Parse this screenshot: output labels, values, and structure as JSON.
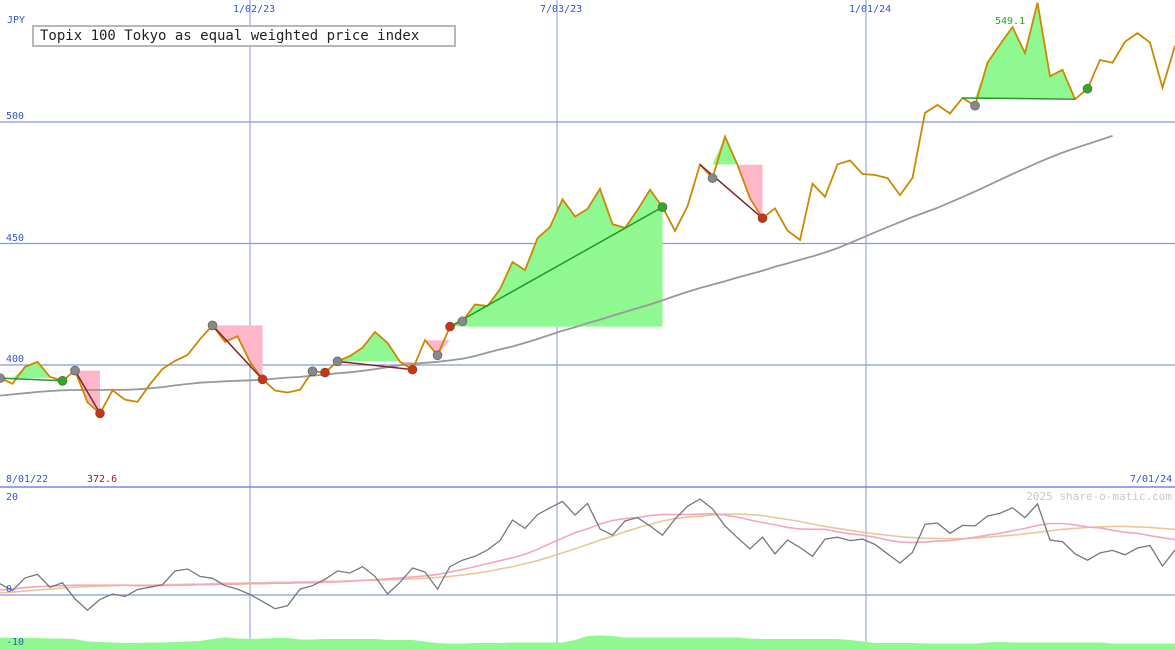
{
  "chart_data": [
    {
      "type": "line",
      "title": "Topix 100 Tokyo as equal weighted price index",
      "ylabel": "JPY",
      "ylim": [
        372.5,
        550
      ],
      "yticks": [
        400,
        450,
        500
      ],
      "x_tick_labels": [
        "1/02/23",
        "7/03/23",
        "1/01/24"
      ],
      "start_date_label": "8/01/22",
      "end_date_label": "7/01/24",
      "min_label": "372.6",
      "max_label": "549.1",
      "grid": true,
      "series": [
        {
          "role": "price",
          "color": "#cc8800",
          "values": [
            394.6,
            392.3,
            399.2,
            401.3,
            395.1,
            393.5,
            397.7,
            384.6,
            380.1,
            389.6,
            385.7,
            384.8,
            392.1,
            398.4,
            401.7,
            404.1,
            410.6,
            416.3,
            409.5,
            411.8,
            401.3,
            394.1,
            389.5,
            388.7,
            389.8,
            397.4,
            396.9,
            401.5,
            403.7,
            407.1,
            413.6,
            409.1,
            401.3,
            398.1,
            410.2,
            404.0,
            415.8,
            418.0,
            424.9,
            424.3,
            431.2,
            442.4,
            439.0,
            452.2,
            456.8,
            468.2,
            461.1,
            464.2,
            472.5,
            458.0,
            456.4,
            463.8,
            472.1,
            465.0,
            455.2,
            465.3,
            482.5,
            476.9,
            494.0,
            482.4,
            468.6,
            460.4,
            464.5,
            455.3,
            451.5,
            474.6,
            469.2,
            482.6,
            484.2,
            478.6,
            478.2,
            476.9,
            469.9,
            477.0,
            503.8,
            507.0,
            503.5,
            509.9,
            506.7,
            524.4,
            531.9,
            539.1,
            528.3,
            549.1,
            518.8,
            521.5,
            509.4,
            513.7,
            525.5,
            524.4,
            533.0,
            536.6,
            532.7,
            514.1,
            531.4
          ]
        },
        {
          "role": "moving-average",
          "color": "#999999",
          "values": [
            387.4,
            387.9,
            388.4,
            388.9,
            389.3,
            389.6,
            389.7,
            389.7,
            389.7,
            389.8,
            389.8,
            390.0,
            390.4,
            390.9,
            391.6,
            392.2,
            392.7,
            393.0,
            393.3,
            393.5,
            393.7,
            393.9,
            394.4,
            394.8,
            395.1,
            395.6,
            396.1,
            396.6,
            397.0,
            397.6,
            398.3,
            399.1,
            399.9,
            400.5,
            400.9,
            401.3,
            401.9,
            402.6,
            403.7,
            405.1,
            406.4,
            407.6,
            409.1,
            410.7,
            412.4,
            414.1,
            415.5,
            417.2,
            418.7,
            420.3,
            421.8,
            423.4,
            424.9,
            426.6,
            428.4,
            430.1,
            431.7,
            433.1,
            434.5,
            436.0,
            437.4,
            438.8,
            440.4,
            441.8,
            443.3,
            444.7,
            446.3,
            448.1,
            450.2,
            452.4,
            454.6,
            456.7,
            458.8,
            460.9,
            462.8,
            464.7,
            466.9,
            469.1,
            471.4,
            473.8,
            476.2,
            478.6,
            480.9,
            483.2,
            485.4,
            487.4,
            489.2,
            490.9,
            492.6,
            494.3
          ]
        }
      ],
      "highlight_zones": [
        {
          "type": "up",
          "from": 0,
          "to": 5
        },
        {
          "type": "down",
          "from": 6,
          "to": 8
        },
        {
          "type": "down",
          "from": 17,
          "to": 21
        },
        {
          "type": "up",
          "from": 27,
          "to": 32
        },
        {
          "type": "down",
          "from": 32,
          "to": 33
        },
        {
          "type": "down",
          "from": 34,
          "to": 36
        },
        {
          "type": "up",
          "from": 36,
          "to": 53
        },
        {
          "type": "up",
          "from": 56,
          "to": 59
        },
        {
          "type": "down",
          "from": 59,
          "to": 61
        },
        {
          "type": "up",
          "from": 77,
          "to": 86
        }
      ],
      "signal_lines": [
        {
          "type": "up",
          "from": 0,
          "to": 5
        },
        {
          "type": "down",
          "from": 6,
          "to": 8
        },
        {
          "type": "down",
          "from": 17,
          "to": 21
        },
        {
          "type": "down",
          "from": 27,
          "to": 33
        },
        {
          "type": "up",
          "from": 36,
          "to": 53
        },
        {
          "type": "down",
          "from": 56,
          "to": 61
        },
        {
          "type": "up",
          "from": 77,
          "to": 86
        }
      ],
      "markers": [
        {
          "i": 0,
          "color": "grey"
        },
        {
          "i": 5,
          "color": "green"
        },
        {
          "i": 6,
          "color": "grey"
        },
        {
          "i": 8,
          "color": "red"
        },
        {
          "i": 17,
          "color": "grey"
        },
        {
          "i": 21,
          "color": "red"
        },
        {
          "i": 25,
          "color": "grey"
        },
        {
          "i": 26,
          "color": "red"
        },
        {
          "i": 27,
          "color": "grey"
        },
        {
          "i": 33,
          "color": "red"
        },
        {
          "i": 35,
          "color": "grey"
        },
        {
          "i": 36,
          "color": "red"
        },
        {
          "i": 37,
          "color": "grey"
        },
        {
          "i": 53,
          "color": "green"
        },
        {
          "i": 57,
          "color": "grey"
        },
        {
          "i": 61,
          "color": "red"
        },
        {
          "i": 78,
          "color": "grey"
        },
        {
          "i": 87,
          "color": "green"
        }
      ]
    },
    {
      "type": "line",
      "yticks": [
        20,
        0,
        -10
      ],
      "ylim": [
        -10,
        20
      ],
      "series": [
        {
          "role": "oscillator",
          "color": "#777777",
          "values": [
            2.3,
            0.9,
            3.5,
            4.2,
            1.6,
            2.5,
            -0.8,
            -3.1,
            -0.9,
            0.2,
            -0.3,
            1.1,
            1.6,
            2.1,
            4.9,
            5.3,
            3.8,
            3.4,
            1.9,
            1.2,
            0.1,
            -1.3,
            -2.8,
            -2.2,
            1.2,
            1.9,
            3.2,
            4.9,
            4.5,
            5.8,
            3.8,
            0.2,
            2.6,
            5.5,
            4.7,
            1.2,
            5.8,
            7.1,
            7.9,
            9.2,
            11.1,
            15.3,
            13.6,
            16.4,
            17.8,
            19.1,
            16.3,
            18.7,
            13.5,
            12.2,
            15.1,
            15.8,
            14.1,
            12.2,
            15.5,
            18.1,
            19.6,
            17.6,
            14.1,
            11.7,
            9.4,
            11.8,
            8.4,
            11.2,
            9.7,
            7.9,
            11.4,
            11.8,
            11.1,
            11.4,
            10.3,
            8.4,
            6.5,
            8.7,
            14.4,
            14.7,
            12.6,
            14.2,
            14.1,
            16.1,
            16.7,
            17.8,
            15.8,
            18.6,
            11.2,
            10.9,
            8.4,
            7.1,
            8.6,
            9.1,
            8.2,
            9.6,
            10.1,
            5.9,
            9.2
          ]
        },
        {
          "role": "average-1",
          "color": "#f4a6c0",
          "values": [
            1.0,
            1.2,
            1.5,
            1.7,
            1.8,
            1.9,
            2.0,
            2.0,
            2.0,
            2.0,
            2.0,
            1.9,
            1.9,
            1.9,
            2.0,
            2.0,
            2.1,
            2.1,
            2.2,
            2.2,
            2.3,
            2.3,
            2.4,
            2.4,
            2.5,
            2.5,
            2.6,
            2.7,
            2.8,
            3.0,
            3.1,
            3.3,
            3.5,
            3.7,
            3.9,
            4.2,
            4.7,
            5.2,
            5.8,
            6.4,
            7.0,
            7.6,
            8.3,
            9.3,
            10.5,
            11.6,
            12.7,
            13.5,
            14.5,
            15.2,
            15.6,
            15.8,
            16.2,
            16.4,
            16.4,
            16.4,
            16.5,
            16.6,
            16.3,
            15.9,
            15.3,
            14.8,
            14.3,
            13.8,
            13.5,
            13.4,
            13.4,
            12.9,
            12.5,
            12.2,
            11.8,
            11.2,
            10.8,
            10.7,
            10.8,
            11.0,
            11.1,
            11.4,
            11.8,
            12.2,
            12.6,
            13.1,
            13.6,
            14.2,
            14.6,
            14.6,
            14.3,
            13.9,
            13.7,
            13.2,
            12.8,
            12.6,
            12.1,
            11.7,
            11.3
          ]
        },
        {
          "role": "average-2",
          "color": "#e8c89a",
          "values": [
            0.4,
            0.6,
            0.8,
            1.0,
            1.2,
            1.4,
            1.6,
            1.7,
            1.8,
            1.9,
            2.0,
            2.0,
            2.0,
            2.1,
            2.1,
            2.2,
            2.2,
            2.3,
            2.4,
            2.4,
            2.5,
            2.5,
            2.6,
            2.6,
            2.7,
            2.7,
            2.8,
            2.8,
            2.9,
            3.0,
            3.0,
            3.1,
            3.2,
            3.3,
            3.4,
            3.6,
            3.8,
            4.1,
            4.4,
            4.8,
            5.3,
            5.8,
            6.4,
            7.0,
            7.8,
            8.6,
            9.4,
            10.3,
            11.2,
            12.0,
            12.9,
            13.7,
            14.4,
            15.1,
            15.6,
            15.9,
            16.1,
            16.3,
            16.5,
            16.5,
            16.4,
            16.2,
            15.8,
            15.4,
            15.0,
            14.5,
            14.0,
            13.6,
            13.2,
            12.8,
            12.5,
            12.2,
            11.9,
            11.7,
            11.6,
            11.5,
            11.5,
            11.5,
            11.6,
            11.8,
            12.0,
            12.2,
            12.5,
            12.8,
            13.1,
            13.4,
            13.6,
            13.8,
            13.9,
            14.0,
            14.0,
            13.9,
            13.8,
            13.6,
            13.4
          ]
        }
      ],
      "volume_values": [
        2.5,
        2.4,
        2.4,
        2.4,
        2.3,
        2.3,
        2.2,
        1.7,
        1.6,
        1.5,
        1.4,
        1.4,
        1.5,
        1.5,
        1.6,
        1.7,
        1.8,
        2.2,
        2.5,
        2.3,
        2.2,
        2.3,
        2.4,
        2.4,
        2.1,
        2.1,
        2.2,
        2.2,
        2.2,
        2.2,
        2.2,
        2.0,
        2.0,
        2.0,
        1.7,
        1.4,
        1.3,
        1.3,
        1.4,
        1.4,
        1.4,
        1.5,
        1.5,
        1.5,
        1.5,
        1.5,
        2.0,
        2.8,
        2.9,
        2.8,
        2.5,
        2.5,
        2.5,
        2.5,
        2.5,
        2.5,
        2.5,
        2.5,
        2.5,
        2.5,
        2.3,
        2.2,
        2.2,
        2.2,
        2.2,
        2.2,
        2.2,
        2.2,
        2.0,
        1.7,
        1.4,
        1.4,
        1.4,
        1.4,
        1.3,
        1.3,
        1.3,
        1.3,
        1.3,
        1.5,
        1.6,
        1.5,
        1.5,
        1.5,
        1.5,
        1.5,
        1.5,
        1.5,
        1.5,
        1.3,
        1.3,
        1.3,
        1.3,
        1.3,
        1.3
      ]
    }
  ],
  "watermark": "2025 share-o-matic.com"
}
